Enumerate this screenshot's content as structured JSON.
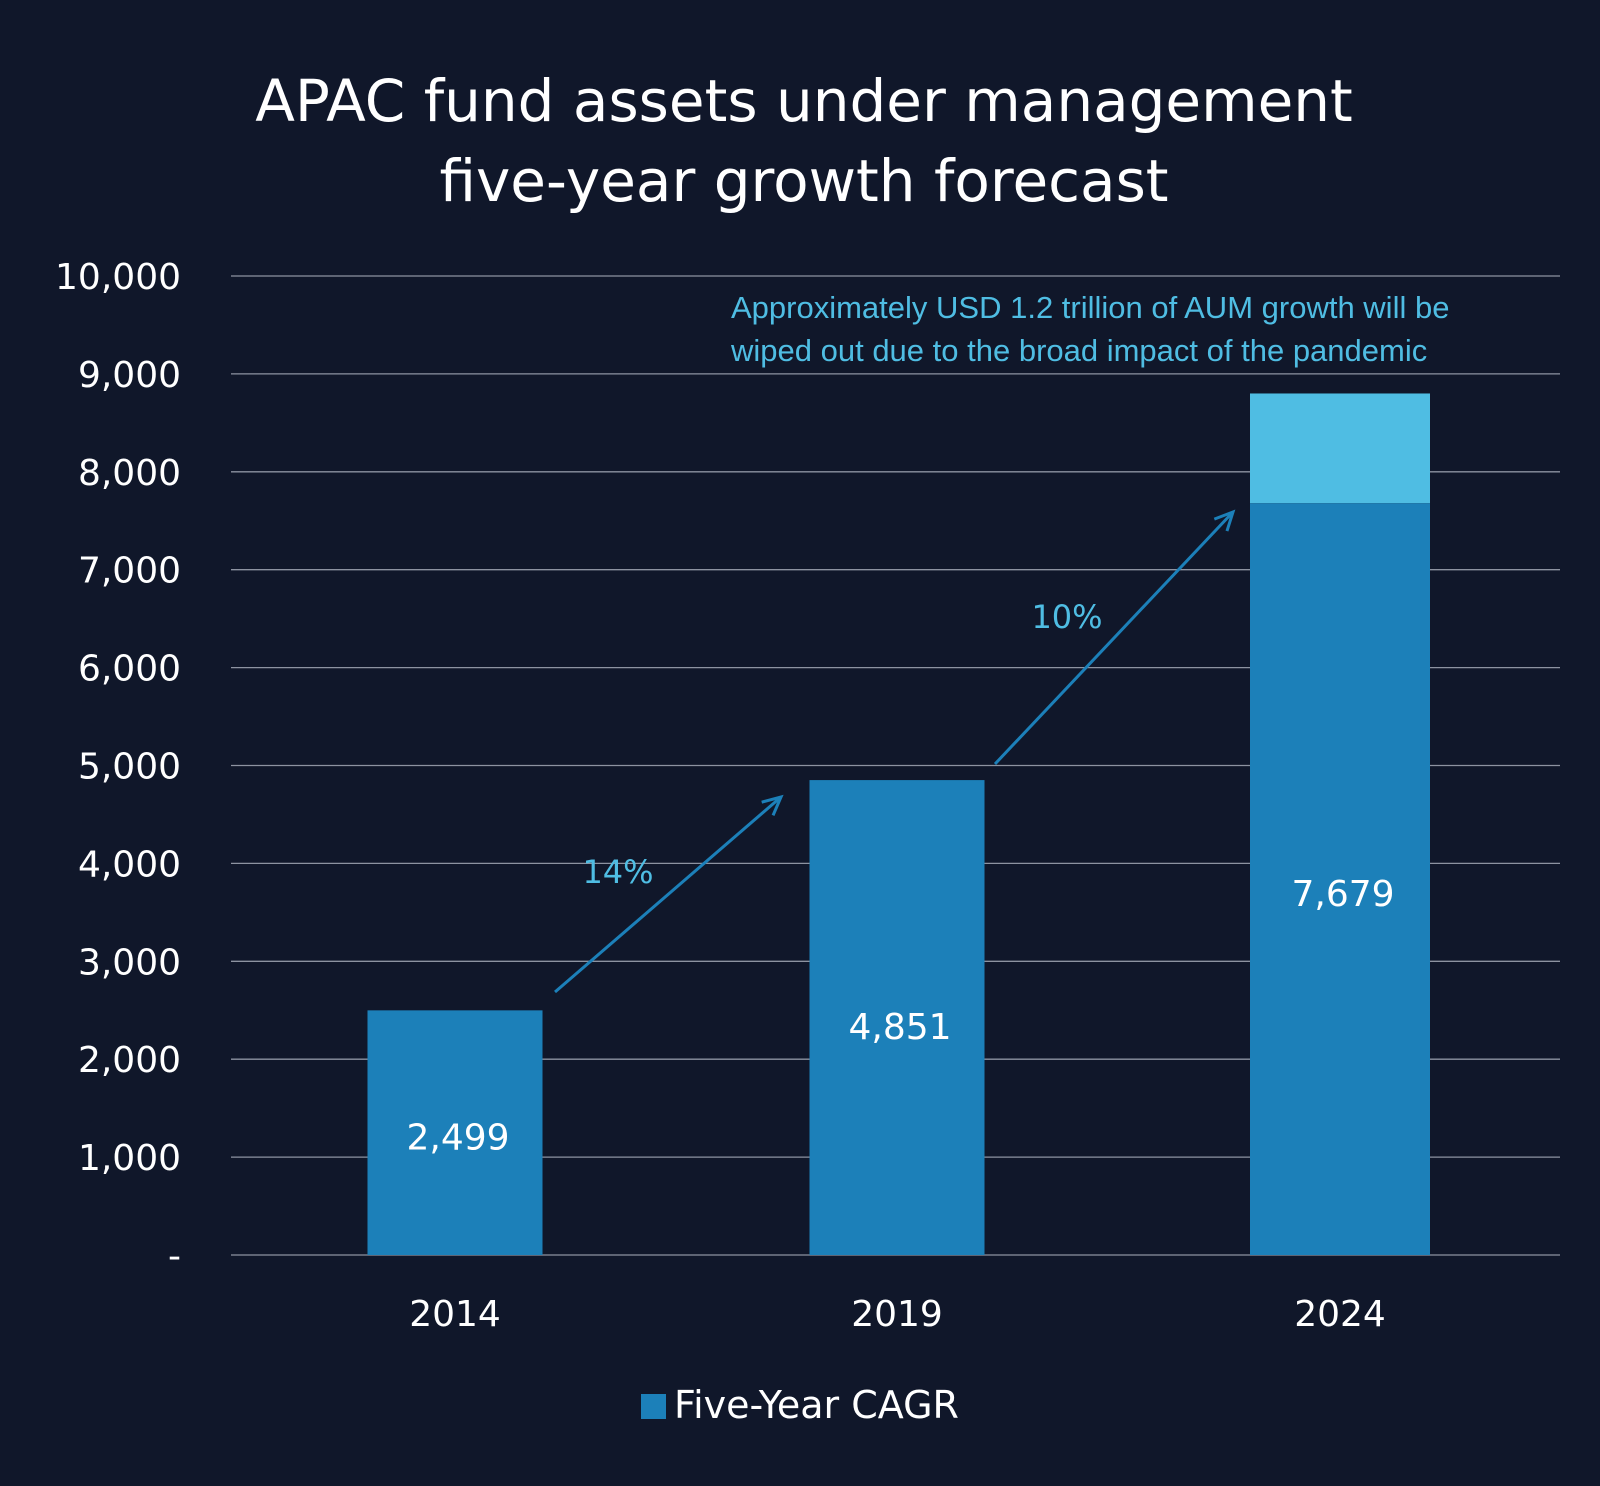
{
  "chart_data": {
    "type": "bar",
    "title_lines": [
      "APAC fund assets under management",
      "five-year growth forecast"
    ],
    "categories": [
      "2014",
      "2019",
      "2024"
    ],
    "series": [
      {
        "name": "Five-Year CAGR",
        "values": [
          2499,
          4851,
          7679
        ],
        "color": "#1c80b9"
      }
    ],
    "pandemic_impact": {
      "category": "2024",
      "top_value": 8800,
      "color": "#4fbde3"
    },
    "value_labels": [
      "2,499",
      "4,851",
      "7,679"
    ],
    "ylim": [
      0,
      10000
    ],
    "y_ticks": [
      {
        "value": 0,
        "label": "-"
      },
      {
        "value": 1000,
        "label": "1,000"
      },
      {
        "value": 2000,
        "label": "2,000"
      },
      {
        "value": 3000,
        "label": "3,000"
      },
      {
        "value": 4000,
        "label": "4,000"
      },
      {
        "value": 5000,
        "label": "5,000"
      },
      {
        "value": 6000,
        "label": "6,000"
      },
      {
        "value": 7000,
        "label": "7,000"
      },
      {
        "value": 8000,
        "label": "8,000"
      },
      {
        "value": 9000,
        "label": "9,000"
      },
      {
        "value": 10000,
        "label": "10,000"
      }
    ],
    "grid": true,
    "legend_position": "bottom-center",
    "growth_arrows": [
      {
        "from": "2014",
        "to": "2019",
        "label": "14%"
      },
      {
        "from": "2019",
        "to": "2024",
        "label": "10%"
      }
    ],
    "annotation": {
      "lines": [
        "Approximately USD 1.2 trillion of AUM growth will be",
        "wiped out due to the broad impact of the pandemic"
      ],
      "color": "#4fbde3"
    },
    "colors": {
      "background": "#10172a",
      "gridline": "#8d93a1",
      "arrow": "#1c80b9",
      "arrow_label": "#4fbde3",
      "text": "#ffffff"
    }
  }
}
